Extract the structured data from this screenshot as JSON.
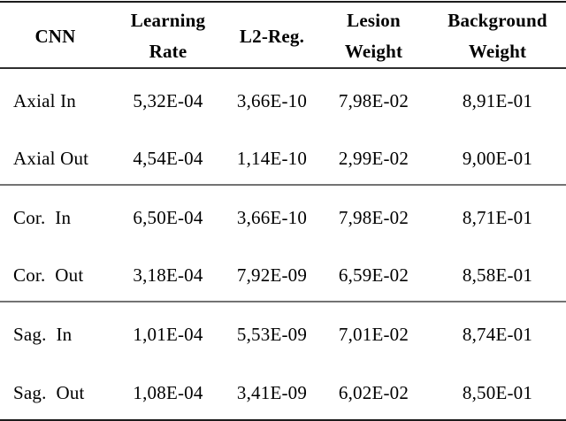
{
  "table": {
    "columns": [
      {
        "label": "CNN"
      },
      {
        "label": "Learning\nRate"
      },
      {
        "label": "L2-Reg."
      },
      {
        "label": "Lesion\nWeight"
      },
      {
        "label": "Background\nWeight"
      }
    ],
    "rows": [
      {
        "cnn": "Axial In",
        "learning_rate": "5,32E-04",
        "l2_reg": "3,66E-10",
        "lesion_weight": "7,98E-02",
        "background_weight": "8,91E-01"
      },
      {
        "cnn": "Axial Out",
        "learning_rate": "4,54E-04",
        "l2_reg": "1,14E-10",
        "lesion_weight": "2,99E-02",
        "background_weight": "9,00E-01"
      },
      {
        "cnn": "Cor.  In",
        "learning_rate": "6,50E-04",
        "l2_reg": "3,66E-10",
        "lesion_weight": "7,98E-02",
        "background_weight": "8,71E-01"
      },
      {
        "cnn": "Cor.  Out",
        "learning_rate": "3,18E-04",
        "l2_reg": "7,92E-09",
        "lesion_weight": "6,59E-02",
        "background_weight": "8,58E-01"
      },
      {
        "cnn": "Sag.  In",
        "learning_rate": "1,01E-04",
        "l2_reg": "5,53E-09",
        "lesion_weight": "7,01E-02",
        "background_weight": "8,74E-01"
      },
      {
        "cnn": "Sag.  Out",
        "learning_rate": "1,08E-04",
        "l2_reg": "3,41E-09",
        "lesion_weight": "6,02E-02",
        "background_weight": "8,50E-01"
      }
    ]
  },
  "colors": {
    "text": "#000000",
    "background": "#ffffff",
    "rule_heavy": "#1c1c1c",
    "rule_header": "#2e2e2e",
    "rule_group": "#737373"
  }
}
